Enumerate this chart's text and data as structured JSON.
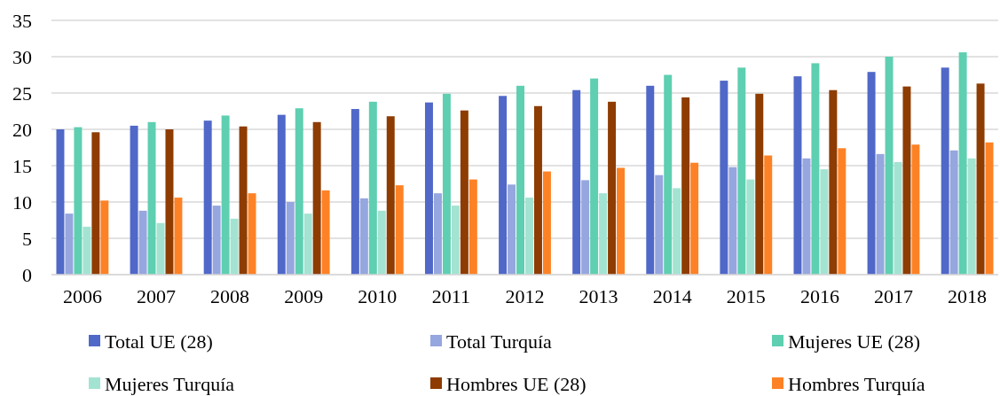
{
  "chart_data": {
    "type": "bar",
    "categories": [
      "2006",
      "2007",
      "2008",
      "2009",
      "2010",
      "2011",
      "2012",
      "2013",
      "2014",
      "2015",
      "2016",
      "2017",
      "2018"
    ],
    "series": [
      {
        "name": "Total UE (28)",
        "color": "#5068c8",
        "values": [
          20.0,
          20.5,
          21.2,
          22.0,
          22.8,
          23.7,
          24.6,
          25.4,
          26.0,
          26.7,
          27.3,
          27.9,
          28.5
        ]
      },
      {
        "name": "Total Turquía",
        "color": "#96a6de",
        "values": [
          8.4,
          8.8,
          9.5,
          10.0,
          10.5,
          11.2,
          12.4,
          13.0,
          13.7,
          14.8,
          16.0,
          16.6,
          17.1
        ]
      },
      {
        "name": "Mujeres UE (28)",
        "color": "#5ecfb1",
        "values": [
          20.3,
          21.0,
          21.9,
          22.9,
          23.8,
          24.9,
          26.0,
          27.0,
          27.5,
          28.5,
          29.1,
          30.0,
          30.6
        ]
      },
      {
        "name": "Mujeres Turquía",
        "color": "#a3e3d1",
        "values": [
          6.6,
          7.1,
          7.7,
          8.4,
          8.8,
          9.5,
          10.6,
          11.2,
          11.9,
          13.1,
          14.5,
          15.5,
          16.0
        ]
      },
      {
        "name": "Hombres UE (28)",
        "color": "#8e3c02",
        "values": [
          19.6,
          20.0,
          20.4,
          21.0,
          21.8,
          22.6,
          23.2,
          23.8,
          24.4,
          24.9,
          25.4,
          25.9,
          26.3
        ]
      },
      {
        "name": "Hombres Turquía",
        "color": "#fd8226",
        "values": [
          10.2,
          10.6,
          11.2,
          11.6,
          12.3,
          13.1,
          14.2,
          14.7,
          15.4,
          16.4,
          17.4,
          17.9,
          18.2
        ]
      }
    ],
    "ylim": [
      0,
      35
    ],
    "yticks": [
      0,
      5,
      10,
      15,
      20,
      25,
      30,
      35
    ],
    "grid": "y",
    "legend": "bottom"
  }
}
